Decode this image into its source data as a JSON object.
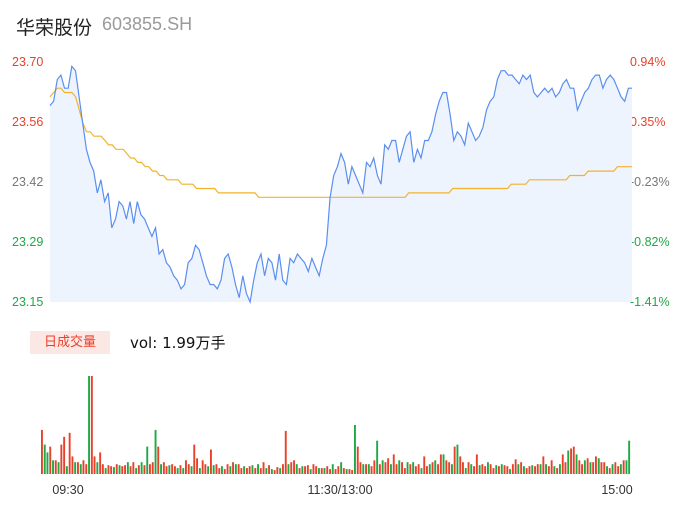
{
  "header": {
    "name": "华荣股份",
    "code": "603855.SH"
  },
  "volume_panel": {
    "tab_label": "日成交量",
    "vol_label": "vol:",
    "vol_value": "1.99万手"
  },
  "colors": {
    "price": "#5a8ef0",
    "avg": "#f2b22e",
    "up": "#e8412b",
    "down": "#1fa845",
    "fill": "#eef4fe"
  },
  "chart_data": [
    {
      "type": "line",
      "x_ticks": [
        "09:30",
        "11:30/13:00",
        "15:00"
      ],
      "y_ticks": [
        "23.70",
        "23.56",
        "23.42",
        "23.29",
        "23.15"
      ],
      "y_pct_ticks": [
        "0.94%",
        "0.35%",
        "-0.23%",
        "-0.82%",
        "-1.41%"
      ],
      "ylim": [
        23.15,
        23.7
      ],
      "series": [
        {
          "values": [
            23.6,
            23.61,
            23.66,
            23.67,
            23.64,
            23.64,
            23.69,
            23.68,
            23.62,
            23.56,
            23.5,
            23.47,
            23.45,
            23.4,
            23.43,
            23.38,
            23.4,
            23.32,
            23.34,
            23.38,
            23.37,
            23.34,
            23.38,
            23.33,
            23.38,
            23.35,
            23.34,
            23.32,
            23.3,
            23.32,
            23.26,
            23.27,
            23.24,
            23.23,
            23.21,
            23.2,
            23.18,
            23.19,
            23.24,
            23.25,
            23.28,
            23.27,
            23.24,
            23.21,
            23.19,
            23.19,
            23.18,
            23.2,
            23.25,
            23.26,
            23.23,
            23.19,
            23.16,
            23.21,
            23.17,
            23.15,
            23.2,
            23.24,
            23.26,
            23.21,
            23.25,
            23.24,
            23.2,
            23.26,
            23.2,
            23.19,
            23.25,
            23.24,
            23.26,
            23.25,
            23.24,
            23.22,
            23.25,
            23.23,
            23.21,
            23.25,
            23.28,
            23.39,
            23.44,
            23.46,
            23.49,
            23.47,
            23.42,
            23.46,
            23.44,
            23.42,
            23.4,
            23.47,
            23.46,
            23.48,
            23.44,
            23.42,
            23.51,
            23.5,
            23.52,
            23.52,
            23.47,
            23.5,
            23.53,
            23.54,
            23.47,
            23.5,
            23.48,
            23.52,
            23.52,
            23.54,
            23.58,
            23.61,
            23.63,
            23.63,
            23.58,
            23.52,
            23.54,
            23.53,
            23.51,
            23.56,
            23.54,
            23.52,
            23.53,
            23.55,
            23.59,
            23.61,
            23.62,
            23.66,
            23.68,
            23.68,
            23.67,
            23.67,
            23.66,
            23.65,
            23.67,
            23.66,
            23.67,
            23.63,
            23.62,
            23.63,
            23.64,
            23.63,
            23.64,
            23.62,
            23.63,
            23.65,
            23.66,
            23.64,
            23.64,
            23.59,
            23.61,
            23.63,
            23.64,
            23.66,
            23.67,
            23.67,
            23.64,
            23.66,
            23.67,
            23.66,
            23.64,
            23.62,
            23.61,
            23.64,
            23.64
          ]
        },
        {
          "values": [
            23.62,
            23.63,
            23.64,
            23.64,
            23.63,
            23.63,
            23.63,
            23.62,
            23.59,
            23.56,
            23.54,
            23.54,
            23.53,
            23.53,
            23.53,
            23.52,
            23.51,
            23.51,
            23.5,
            23.5,
            23.5,
            23.49,
            23.48,
            23.48,
            23.47,
            23.47,
            23.46,
            23.46,
            23.45,
            23.45,
            23.44,
            23.44,
            23.43,
            23.43,
            23.43,
            23.43,
            23.42,
            23.42,
            23.42,
            23.42,
            23.41,
            23.41,
            23.41,
            23.41,
            23.41,
            23.41,
            23.4,
            23.4,
            23.4,
            23.4,
            23.4,
            23.4,
            23.4,
            23.4,
            23.4,
            23.4,
            23.4,
            23.39,
            23.39,
            23.39,
            23.39,
            23.39,
            23.39,
            23.39,
            23.39,
            23.39,
            23.39,
            23.39,
            23.39,
            23.39,
            23.39,
            23.39,
            23.39,
            23.39,
            23.39,
            23.39,
            23.39,
            23.39,
            23.39,
            23.39,
            23.39,
            23.39,
            23.39,
            23.39,
            23.39,
            23.39,
            23.39,
            23.39,
            23.39,
            23.39,
            23.39,
            23.39,
            23.39,
            23.39,
            23.39,
            23.39,
            23.39,
            23.39,
            23.4,
            23.4,
            23.4,
            23.4,
            23.4,
            23.4,
            23.4,
            23.4,
            23.4,
            23.4,
            23.4,
            23.4,
            23.41,
            23.41,
            23.41,
            23.41,
            23.41,
            23.41,
            23.41,
            23.41,
            23.41,
            23.41,
            23.41,
            23.41,
            23.41,
            23.41,
            23.41,
            23.41,
            23.42,
            23.42,
            23.42,
            23.42,
            23.42,
            23.43,
            23.43,
            23.43,
            23.43,
            23.43,
            23.43,
            23.43,
            23.43,
            23.43,
            23.43,
            23.43,
            23.44,
            23.44,
            23.44,
            23.44,
            23.44,
            23.45,
            23.45,
            23.45,
            23.45,
            23.45,
            23.45,
            23.45,
            23.45,
            23.46,
            23.46,
            23.46,
            23.46,
            23.46
          ]
        }
      ]
    },
    {
      "type": "bar",
      "volumes": [
        45,
        30,
        22,
        28,
        14,
        14,
        12,
        30,
        38,
        8,
        42,
        18,
        12,
        12,
        10,
        14,
        10,
        100,
        100,
        18,
        12,
        22,
        10,
        6,
        9,
        8,
        7,
        10,
        9,
        8,
        9,
        12,
        8,
        12,
        6,
        9,
        12,
        9,
        28,
        10,
        12,
        45,
        28,
        10,
        12,
        8,
        9,
        10,
        8,
        6,
        9,
        6,
        14,
        10,
        8,
        30,
        16,
        6,
        14,
        10,
        8,
        25,
        9,
        10,
        6,
        8,
        5,
        10,
        8,
        12,
        10,
        10,
        6,
        8,
        6,
        8,
        9,
        6,
        10,
        6,
        12,
        6,
        9,
        5,
        4,
        7,
        6,
        10,
        44,
        10,
        12,
        14,
        10,
        6,
        8,
        8,
        9,
        5,
        10,
        8,
        6,
        6,
        6,
        8,
        5,
        10,
        5,
        8,
        12,
        6,
        5,
        5,
        4,
        50,
        28,
        12,
        10,
        10,
        10,
        8,
        14,
        34,
        10,
        14,
        12,
        16,
        10,
        20,
        10,
        14,
        12,
        6,
        12,
        10,
        12,
        8,
        10,
        6,
        18,
        8,
        10,
        12,
        14,
        10,
        20,
        20,
        14,
        12,
        10,
        28,
        30,
        18,
        12,
        6,
        12,
        10,
        8,
        20,
        9,
        10,
        8,
        12,
        10,
        6,
        9,
        8,
        10,
        9,
        8,
        5,
        10,
        15,
        10,
        12,
        8,
        6,
        8,
        9,
        8,
        10,
        10,
        18,
        10,
        8,
        14,
        8,
        6,
        10,
        20,
        12,
        24,
        26,
        28,
        20,
        14,
        10,
        14,
        16,
        12,
        12,
        18,
        16,
        12,
        12,
        8,
        6,
        10,
        12,
        8,
        10,
        14,
        14,
        34
      ],
      "up": [
        1,
        0,
        0,
        1,
        0,
        1,
        0,
        1,
        1,
        0,
        1,
        1,
        0,
        1,
        0,
        1,
        1,
        0,
        1,
        1,
        0,
        1,
        1,
        0,
        1,
        1,
        0,
        1,
        0,
        1,
        1,
        0,
        1,
        1,
        0,
        1,
        0,
        1,
        0,
        1,
        1,
        0,
        1,
        0,
        1,
        1,
        0,
        1,
        1,
        0,
        1,
        0,
        1,
        1,
        0,
        1,
        1,
        0,
        1,
        1,
        0,
        1,
        0,
        1,
        1,
        0,
        1,
        1,
        0,
        1,
        0,
        1,
        1,
        0,
        1,
        1,
        0,
        1,
        0,
        1,
        1,
        0,
        1,
        0,
        1,
        1,
        0,
        1,
        1,
        0,
        1,
        1,
        0,
        1,
        0,
        1,
        1,
        0,
        1,
        1,
        0,
        1,
        0,
        1,
        1,
        0,
        1,
        1,
        0,
        1,
        0,
        1,
        1,
        0,
        1,
        1,
        0,
        1,
        0,
        1,
        1,
        0,
        1,
        0,
        1,
        1,
        0,
        1,
        1,
        0,
        1,
        1,
        0,
        1,
        0,
        1,
        1,
        0,
        1,
        1,
        0,
        1,
        0,
        1,
        1,
        0,
        1,
        1,
        0,
        1,
        0,
        1,
        1,
        0,
        1,
        0,
        1,
        1,
        0,
        1,
        1,
        0,
        1,
        1,
        0,
        1,
        0,
        1,
        1,
        0,
        1,
        1,
        0,
        1,
        0,
        1,
        1,
        0,
        1,
        1,
        0,
        1,
        0,
        1,
        1,
        0,
        1,
        0,
        1,
        1,
        0,
        1,
        1,
        0,
        1,
        1,
        0,
        1,
        0,
        1,
        1,
        0,
        1,
        1,
        0,
        1,
        0,
        1,
        1,
        0,
        1
      ]
    }
  ]
}
